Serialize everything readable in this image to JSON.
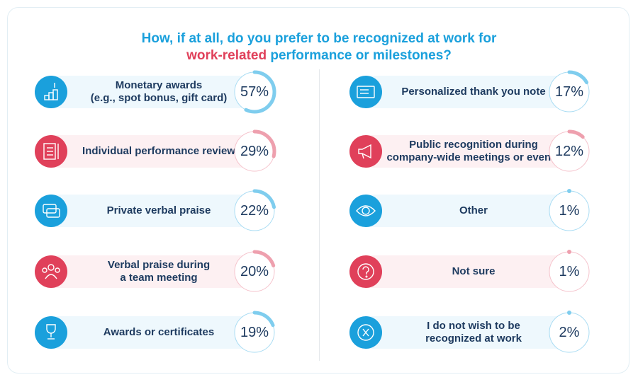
{
  "title": {
    "line1": "How, if at all, do you prefer to be recognized at work for",
    "line2_highlight": "work-related",
    "line2_rest": " performance or milestones?"
  },
  "colors": {
    "blue": "#1aa0dc",
    "red": "#e0405a",
    "blue_arc": "#7fcdee",
    "red_arc": "#eea0ae",
    "text": "#1d3a5f"
  },
  "chart_data": {
    "type": "donut-progress",
    "items": [
      {
        "label": "Monetary awards\n(e.g., spot bonus, gift card)",
        "value": 57,
        "display": "57%",
        "color": "blue",
        "icon": "coins-stack-icon"
      },
      {
        "label": "Individual performance review",
        "value": 29,
        "display": "29%",
        "color": "red",
        "icon": "checklist-pen-icon"
      },
      {
        "label": "Private verbal praise",
        "value": 22,
        "display": "22%",
        "color": "blue",
        "icon": "speech-bubbles-icon"
      },
      {
        "label": "Verbal praise during\na team meeting",
        "value": 20,
        "display": "20%",
        "color": "red",
        "icon": "team-people-icon"
      },
      {
        "label": "Awards or certificates",
        "value": 19,
        "display": "19%",
        "color": "blue",
        "icon": "trophy-icon"
      },
      {
        "label": "Personalized thank you note",
        "value": 17,
        "display": "17%",
        "color": "blue",
        "icon": "note-card-icon"
      },
      {
        "label": "Public recognition during\ncompany-wide meetings or events",
        "value": 12,
        "display": "12%",
        "color": "red",
        "icon": "megaphone-icon"
      },
      {
        "label": "Other",
        "value": 1,
        "display": "1%",
        "color": "blue",
        "icon": "eye-icon"
      },
      {
        "label": "Not sure",
        "value": 1,
        "display": "1%",
        "color": "red",
        "icon": "question-icon"
      },
      {
        "label": "I do not wish to be\nrecognized at work",
        "value": 2,
        "display": "2%",
        "color": "blue",
        "icon": "x-circle-icon"
      }
    ]
  }
}
